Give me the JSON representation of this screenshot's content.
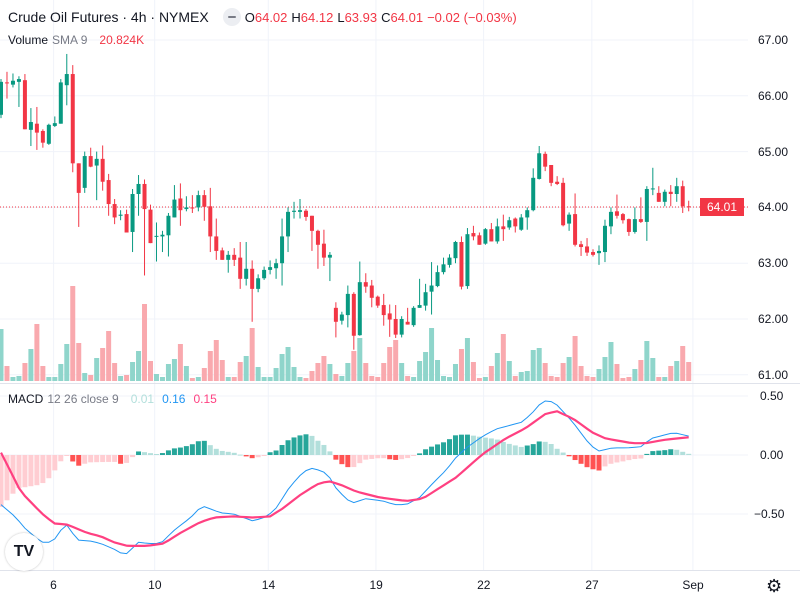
{
  "header": {
    "title": "Crude Oil Futures · 4h · NYMEX",
    "o_label": "O",
    "o": "64.02",
    "h_label": "H",
    "h": "64.12",
    "l_label": "L",
    "l": "63.93",
    "c_label": "C",
    "c": "64.01",
    "change": "−0.02 (−0.03%)"
  },
  "volume_legend": {
    "name": "Volume",
    "params": "SMA 9",
    "value": "20.824K"
  },
  "macd_legend": {
    "name": "MACD",
    "params": "12 26 close 9",
    "hist": "0.01",
    "macd": "0.16",
    "signal": "0.15"
  },
  "price_axis": {
    "labels": [
      "67.00",
      "66.00",
      "65.00",
      "64.00",
      "63.00",
      "62.00",
      "61.00"
    ],
    "current_price": "64.01"
  },
  "macd_axis": {
    "labels": [
      "0.50",
      "0.00",
      "−0.50"
    ]
  },
  "time_axis": {
    "labels": [
      "6",
      "10",
      "14",
      "19",
      "22",
      "27",
      "Sep"
    ]
  },
  "icons": {
    "logo": "tradingview-logo",
    "settings": "gear-icon",
    "minimize": "minus-icon"
  },
  "colors": {
    "up": "#089981",
    "down": "#f23645",
    "vol_up": "#8fd5cb",
    "vol_down": "#f9a9ae",
    "macd": "#2196f3",
    "signal": "#ff4081"
  },
  "chart_data": {
    "type": "candlestick",
    "title": "Crude Oil Futures · 4h · NYMEX",
    "price_range": [
      61,
      67
    ],
    "current_price": 64.01,
    "time_ticks": [
      {
        "label": "6",
        "index": 8.8
      },
      {
        "label": "10",
        "index": 25.7
      },
      {
        "label": "14",
        "index": 44.7
      },
      {
        "label": "19",
        "index": 62.7
      },
      {
        "label": "22",
        "index": 80.7
      },
      {
        "label": "27",
        "index": 98.8
      },
      {
        "label": "Sep",
        "index": 115.7
      }
    ],
    "ohlc": [
      [
        65.66,
        66.3,
        65.6,
        66.25
      ],
      [
        66.24,
        66.43,
        65.95,
        66.23
      ],
      [
        66.2,
        66.4,
        66.15,
        66.27
      ],
      [
        66.25,
        66.35,
        65.8,
        66.3
      ],
      [
        66.28,
        66.39,
        65.4,
        65.4
      ],
      [
        65.39,
        65.78,
        65.1,
        65.53
      ],
      [
        65.5,
        65.8,
        65.03,
        65.34
      ],
      [
        65.37,
        65.4,
        65.07,
        65.16
      ],
      [
        65.14,
        65.5,
        65.12,
        65.48
      ],
      [
        65.46,
        65.63,
        65.44,
        65.51
      ],
      [
        65.5,
        66.3,
        65.5,
        66.24
      ],
      [
        66.19,
        66.75,
        65.83,
        66.39
      ],
      [
        66.39,
        66.55,
        64.63,
        64.79
      ],
      [
        64.79,
        64.79,
        63.65,
        64.26
      ],
      [
        64.35,
        65.0,
        64.26,
        64.92
      ],
      [
        64.92,
        65.07,
        64.72,
        64.73
      ],
      [
        64.75,
        65.0,
        64.13,
        64.87
      ],
      [
        64.87,
        65.11,
        64.3,
        64.46
      ],
      [
        64.49,
        64.6,
        63.85,
        64.06
      ],
      [
        64.06,
        64.15,
        63.7,
        63.82
      ],
      [
        63.85,
        63.95,
        63.77,
        63.87
      ],
      [
        63.88,
        63.96,
        63.55,
        63.55
      ],
      [
        63.56,
        64.33,
        63.2,
        64.24
      ],
      [
        64.24,
        64.58,
        63.85,
        64.42
      ],
      [
        64.42,
        64.5,
        62.78,
        63.97
      ],
      [
        63.96,
        64.05,
        63.36,
        63.36
      ],
      [
        63.48,
        63.73,
        63.03,
        63.49
      ],
      [
        63.48,
        63.58,
        63.2,
        63.51
      ],
      [
        63.5,
        63.9,
        63.12,
        63.85
      ],
      [
        63.82,
        64.4,
        63.82,
        64.14
      ],
      [
        64.16,
        64.43,
        63.67,
        63.95
      ],
      [
        63.97,
        64.2,
        63.93,
        64.0
      ],
      [
        64.0,
        64.22,
        63.9,
        63.98
      ],
      [
        64.0,
        64.3,
        63.93,
        64.22
      ],
      [
        64.22,
        64.31,
        63.76,
        64.01
      ],
      [
        64.02,
        64.35,
        63.2,
        63.48
      ],
      [
        63.48,
        63.8,
        63.06,
        63.22
      ],
      [
        63.23,
        63.28,
        63.06,
        63.06
      ],
      [
        63.06,
        63.22,
        62.83,
        63.15
      ],
      [
        63.15,
        63.27,
        62.95,
        63.06
      ],
      [
        63.1,
        63.38,
        62.54,
        62.72
      ],
      [
        62.72,
        63.38,
        62.6,
        62.9
      ],
      [
        62.9,
        63.05,
        61.95,
        62.54
      ],
      [
        62.54,
        62.8,
        62.48,
        62.73
      ],
      [
        62.73,
        62.94,
        62.7,
        62.88
      ],
      [
        62.88,
        63.05,
        62.8,
        62.93
      ],
      [
        62.91,
        63.08,
        62.72,
        63.0
      ],
      [
        63.0,
        63.8,
        62.6,
        63.48
      ],
      [
        63.48,
        64.0,
        63.2,
        63.92
      ],
      [
        63.92,
        64.1,
        63.8,
        63.94
      ],
      [
        63.92,
        64.15,
        63.8,
        63.95
      ],
      [
        63.94,
        63.97,
        63.76,
        63.83
      ],
      [
        63.85,
        63.85,
        63.22,
        63.58
      ],
      [
        63.58,
        63.6,
        62.9,
        63.33
      ],
      [
        63.35,
        63.6,
        62.95,
        63.1
      ],
      [
        63.1,
        63.2,
        62.68,
        63.15
      ],
      [
        62.2,
        62.3,
        61.67,
        61.95
      ],
      [
        61.97,
        62.13,
        61.9,
        62.08
      ],
      [
        62.07,
        62.6,
        61.85,
        62.45
      ],
      [
        62.45,
        62.48,
        61.45,
        61.7
      ],
      [
        61.71,
        63.03,
        61.7,
        62.66
      ],
      [
        62.66,
        62.82,
        62.47,
        62.58
      ],
      [
        62.6,
        62.7,
        62.21,
        62.38
      ],
      [
        62.4,
        62.42,
        62.2,
        62.24
      ],
      [
        62.25,
        62.45,
        61.88,
        62.07
      ],
      [
        62.1,
        62.26,
        61.68,
        61.99
      ],
      [
        62.0,
        62.25,
        61.66,
        61.72
      ],
      [
        61.72,
        62.05,
        61.67,
        62.0
      ],
      [
        61.95,
        62.2,
        61.9,
        61.9
      ],
      [
        61.89,
        62.23,
        61.86,
        62.2
      ],
      [
        62.2,
        62.72,
        62.2,
        62.25
      ],
      [
        62.24,
        62.63,
        62.15,
        62.48
      ],
      [
        62.49,
        63.02,
        62.08,
        62.6
      ],
      [
        62.59,
        62.96,
        62.57,
        62.84
      ],
      [
        62.84,
        63.1,
        62.8,
        62.98
      ],
      [
        62.97,
        63.16,
        62.92,
        63.1
      ],
      [
        63.09,
        63.4,
        63.0,
        63.38
      ],
      [
        63.38,
        63.48,
        62.53,
        62.58
      ],
      [
        62.59,
        63.63,
        62.54,
        63.52
      ],
      [
        63.54,
        63.67,
        63.41,
        63.48
      ],
      [
        63.5,
        63.55,
        63.33,
        63.33
      ],
      [
        63.35,
        63.63,
        63.33,
        63.61
      ],
      [
        63.61,
        63.72,
        63.39,
        63.39
      ],
      [
        63.39,
        63.8,
        63.35,
        63.66
      ],
      [
        63.66,
        63.87,
        63.4,
        63.61
      ],
      [
        63.64,
        63.83,
        63.6,
        63.77
      ],
      [
        63.8,
        63.82,
        63.55,
        63.66
      ],
      [
        63.6,
        63.88,
        63.58,
        63.82
      ],
      [
        63.82,
        64.0,
        63.6,
        63.95
      ],
      [
        63.95,
        64.7,
        63.93,
        64.53
      ],
      [
        64.51,
        65.1,
        64.5,
        64.97
      ],
      [
        64.96,
        65.0,
        64.65,
        64.73
      ],
      [
        64.76,
        64.76,
        64.38,
        64.44
      ],
      [
        64.46,
        64.56,
        64.4,
        64.42
      ],
      [
        64.44,
        64.53,
        63.66,
        63.68
      ],
      [
        63.71,
        63.91,
        63.58,
        63.87
      ],
      [
        63.88,
        64.25,
        63.3,
        63.33
      ],
      [
        63.34,
        63.4,
        63.13,
        63.29
      ],
      [
        63.3,
        63.45,
        63.13,
        63.19
      ],
      [
        63.2,
        63.25,
        63.12,
        63.15
      ],
      [
        63.18,
        63.32,
        62.97,
        63.22
      ],
      [
        63.2,
        63.78,
        63.02,
        63.67
      ],
      [
        63.66,
        64.0,
        63.52,
        63.92
      ],
      [
        63.93,
        64.23,
        63.8,
        63.85
      ],
      [
        63.88,
        63.9,
        63.71,
        63.77
      ],
      [
        63.79,
        63.8,
        63.49,
        63.56
      ],
      [
        63.56,
        64.0,
        63.53,
        63.79
      ],
      [
        63.79,
        64.18,
        63.72,
        63.74
      ],
      [
        63.74,
        64.38,
        63.4,
        64.33
      ],
      [
        64.33,
        64.71,
        64.22,
        64.34
      ],
      [
        64.26,
        64.38,
        64.1,
        64.1
      ],
      [
        64.1,
        64.32,
        64.02,
        64.28
      ],
      [
        64.28,
        64.4,
        64.02,
        64.24
      ],
      [
        64.24,
        64.53,
        64.1,
        64.38
      ],
      [
        64.38,
        64.48,
        63.9,
        64.02
      ],
      [
        64.02,
        64.12,
        63.93,
        64.01
      ]
    ],
    "volume_k": [
      52,
      15,
      4,
      5,
      18,
      32,
      57,
      15,
      4,
      4,
      17,
      37,
      95,
      38,
      8,
      6,
      23,
      33,
      50,
      18,
      5,
      6,
      19,
      30,
      77,
      20,
      7,
      4,
      17,
      22,
      37,
      15,
      3,
      4,
      13,
      30,
      41,
      21,
      4,
      4,
      19,
      25,
      53,
      14,
      4,
      4,
      13,
      27,
      34,
      14,
      4,
      3,
      10,
      18,
      25,
      17,
      7,
      5,
      18,
      30,
      43,
      18,
      5,
      4,
      18,
      34,
      41,
      18,
      5,
      4,
      20,
      29,
      53,
      21,
      5,
      4,
      17,
      32,
      43,
      19,
      3,
      4,
      15,
      28,
      47,
      20,
      5,
      9,
      10,
      31,
      33,
      18,
      5,
      4,
      18,
      24,
      45,
      15,
      5,
      4,
      12,
      24,
      39,
      17,
      3,
      4,
      12,
      21,
      40,
      23,
      4,
      4,
      15,
      20,
      35,
      19
    ],
    "macd": {
      "range": [
        -0.95,
        0.55
      ],
      "macd_points": [
        [
          0,
          -0.42
        ],
        [
          2.5,
          -0.53
        ],
        [
          4,
          -0.62
        ],
        [
          6.7,
          -0.74
        ],
        [
          8.6,
          -0.74
        ],
        [
          10.8,
          -0.58
        ],
        [
          12.8,
          -0.72
        ],
        [
          15,
          -0.73
        ],
        [
          16.7,
          -0.75
        ],
        [
          19,
          -0.8
        ],
        [
          20.7,
          -0.85
        ],
        [
          23,
          -0.74
        ],
        [
          24.7,
          -0.75
        ],
        [
          26.7,
          -0.75
        ],
        [
          28.9,
          -0.64
        ],
        [
          31.7,
          -0.53
        ],
        [
          33.6,
          -0.43
        ],
        [
          36.7,
          -0.49
        ],
        [
          38.9,
          -0.5
        ],
        [
          42.2,
          -0.56
        ],
        [
          44.5,
          -0.52
        ],
        [
          46,
          -0.45
        ],
        [
          48.3,
          -0.27
        ],
        [
          50.6,
          -0.14
        ],
        [
          52.2,
          -0.11
        ],
        [
          54.7,
          -0.16
        ],
        [
          55.5,
          -0.25
        ],
        [
          56.7,
          -0.32
        ],
        [
          58.6,
          -0.41
        ],
        [
          61,
          -0.37
        ],
        [
          63.9,
          -0.39
        ],
        [
          65.8,
          -0.42
        ],
        [
          67.8,
          -0.42
        ],
        [
          70,
          -0.36
        ],
        [
          72.2,
          -0.24
        ],
        [
          74.4,
          -0.13
        ],
        [
          76.1,
          -0.02
        ],
        [
          77.8,
          0.06
        ],
        [
          80.6,
          0.16
        ],
        [
          82.8,
          0.22
        ],
        [
          85,
          0.25
        ],
        [
          87.2,
          0.28
        ],
        [
          88.9,
          0.36
        ],
        [
          90.6,
          0.46
        ],
        [
          92.5,
          0.45
        ],
        [
          95.6,
          0.28
        ],
        [
          97.8,
          0.13
        ],
        [
          99.7,
          0.03
        ],
        [
          102.2,
          0.06
        ],
        [
          104.5,
          0.06
        ],
        [
          107,
          0.07
        ],
        [
          108.7,
          0.14
        ],
        [
          112.5,
          0.19
        ],
        [
          115,
          0.16
        ]
      ],
      "signal_points": [
        [
          0,
          0.02
        ],
        [
          3.3,
          -0.31
        ],
        [
          6.7,
          -0.49
        ],
        [
          8.9,
          -0.58
        ],
        [
          11.1,
          -0.59
        ],
        [
          14.4,
          -0.66
        ],
        [
          16.7,
          -0.69
        ],
        [
          18.9,
          -0.74
        ],
        [
          21.1,
          -0.77
        ],
        [
          24.4,
          -0.77
        ],
        [
          27.2,
          -0.75
        ],
        [
          30,
          -0.66
        ],
        [
          33.3,
          -0.57
        ],
        [
          35.6,
          -0.53
        ],
        [
          38.9,
          -0.52
        ],
        [
          42.2,
          -0.53
        ],
        [
          45,
          -0.52
        ],
        [
          47.2,
          -0.45
        ],
        [
          50,
          -0.34
        ],
        [
          52.8,
          -0.25
        ],
        [
          54.7,
          -0.22
        ],
        [
          56.7,
          -0.25
        ],
        [
          59.4,
          -0.31
        ],
        [
          63.3,
          -0.36
        ],
        [
          67.8,
          -0.39
        ],
        [
          70.5,
          -0.37
        ],
        [
          73.3,
          -0.28
        ],
        [
          76.1,
          -0.19
        ],
        [
          80.6,
          0.01
        ],
        [
          84.4,
          0.14
        ],
        [
          87.8,
          0.23
        ],
        [
          91.1,
          0.35
        ],
        [
          93,
          0.37
        ],
        [
          95.6,
          0.31
        ],
        [
          98.9,
          0.19
        ],
        [
          101.1,
          0.14
        ],
        [
          105.6,
          0.1
        ],
        [
          107.8,
          0.1
        ],
        [
          111.1,
          0.13
        ],
        [
          115,
          0.15
        ]
      ]
    }
  }
}
